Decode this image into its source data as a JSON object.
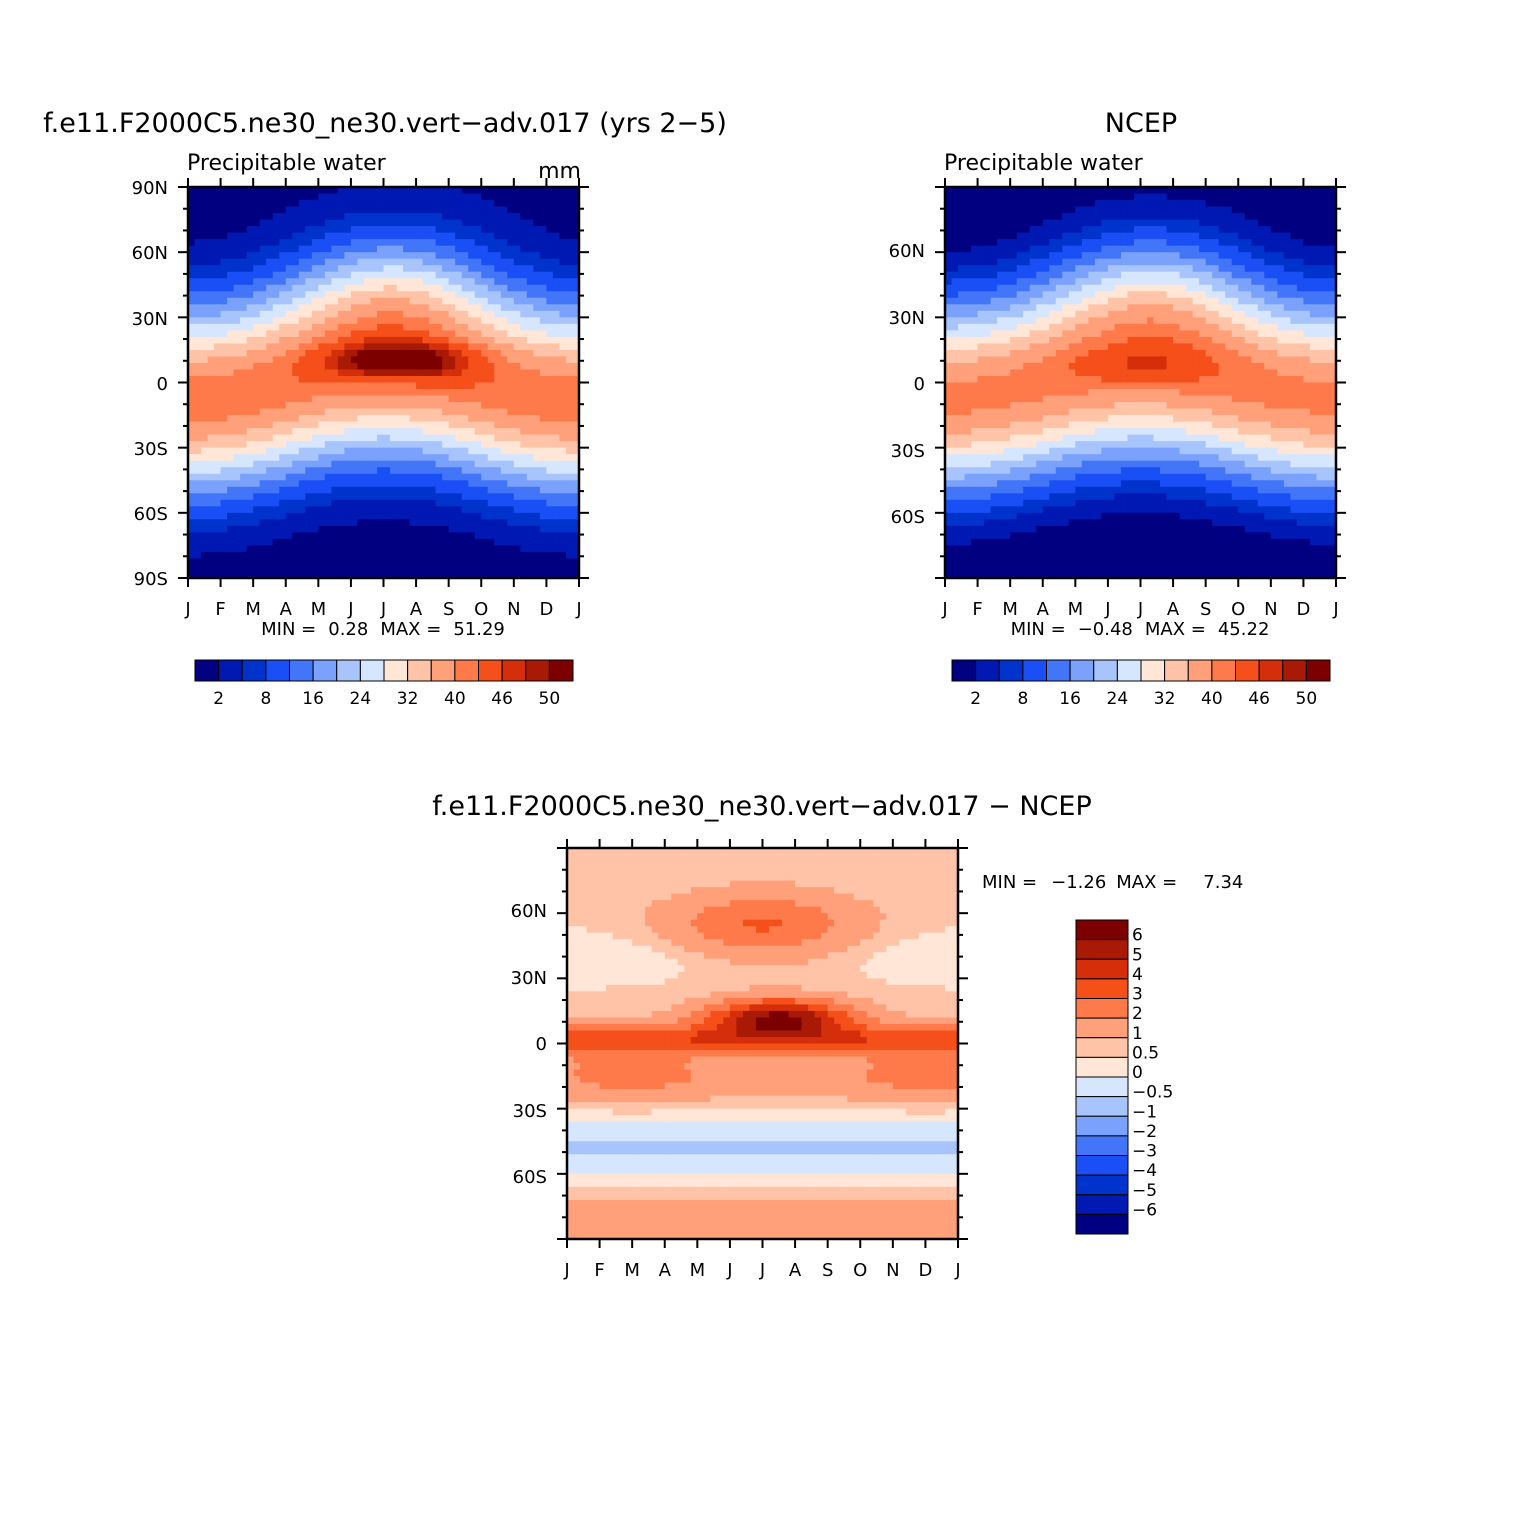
{
  "chart_data": [
    {
      "type": "heatmap",
      "title": "f.e11.F2000C5.ne30_ne30.vert−adv.017 (yrs 2−5)",
      "subtitle": "Precipitable water",
      "units": "mm",
      "x_ticks": [
        "J",
        "F",
        "M",
        "A",
        "M",
        "J",
        "J",
        "A",
        "S",
        "O",
        "N",
        "D",
        "J"
      ],
      "y_ticks": [
        "90N",
        "60N",
        "30N",
        "0",
        "30S",
        "60S",
        "90S"
      ],
      "ylim": [
        -90,
        90
      ],
      "field_model": {
        "equator_peak_mm": 42,
        "seasonal_shift_deg": 8,
        "polar_min_mm": 1,
        "hotspot_mm": 51,
        "hotspot_month": 6.5,
        "hotspot_lat": 10
      },
      "stats": {
        "min_label": "MIN =",
        "min": "0.28",
        "max_label": "MAX =",
        "max": "51.29"
      },
      "colorbar": {
        "levels": [
          "2",
          "8",
          "16",
          "24",
          "32",
          "40",
          "46",
          "50"
        ]
      }
    },
    {
      "type": "heatmap",
      "title": "NCEP",
      "subtitle": "Precipitable water",
      "x_ticks": [
        "J",
        "F",
        "M",
        "A",
        "M",
        "J",
        "J",
        "A",
        "S",
        "O",
        "N",
        "D",
        "J"
      ],
      "y_ticks": [
        "60N",
        "30N",
        "0",
        "30S",
        "60S"
      ],
      "ylim": [
        -90,
        90
      ],
      "field_model": {
        "equator_peak_mm": 41,
        "seasonal_shift_deg": 7,
        "polar_min_mm": 0,
        "hotspot_mm": 44,
        "hotspot_month": 6.0,
        "hotspot_lat": 8
      },
      "stats": {
        "min_label": "MIN =",
        "min": "−0.48",
        "max_label": "MAX =",
        "max": "45.22"
      },
      "colorbar": {
        "levels": [
          "2",
          "8",
          "16",
          "24",
          "32",
          "40",
          "46",
          "50"
        ]
      }
    },
    {
      "type": "heatmap",
      "title": "f.e11.F2000C5.ne30_ne30.vert−adv.017 − NCEP",
      "x_ticks": [
        "J",
        "F",
        "M",
        "A",
        "M",
        "J",
        "J",
        "A",
        "S",
        "O",
        "N",
        "D",
        "J"
      ],
      "y_ticks": [
        "60N",
        "30N",
        "0",
        "30S",
        "60S"
      ],
      "ylim": [
        -90,
        90
      ],
      "stats": {
        "min_label": "MIN =",
        "min": "−1.26",
        "max_label": "MAX =",
        "max": "7.34"
      },
      "colorbar": {
        "levels": [
          "6",
          "5",
          "4",
          "3",
          "2",
          "1",
          "0.5",
          "0",
          "−0.5",
          "−1",
          "−2",
          "−3",
          "−4",
          "−5",
          "−6"
        ]
      }
    }
  ],
  "colors": {
    "abs_scale": [
      "#000080",
      "#0019b3",
      "#0033cc",
      "#1a4ff5",
      "#4275f7",
      "#7aa1fb",
      "#a8c4fd",
      "#d6e6ff",
      "#ffe6d6",
      "#ffc4a8",
      "#ffa07a",
      "#ff7a4a",
      "#f54f1a",
      "#d42e0a",
      "#a81a05",
      "#7d0000"
    ],
    "diff_scale": [
      "#000080",
      "#0019b3",
      "#0033cc",
      "#1a4ff5",
      "#4275f7",
      "#7aa1fb",
      "#a8c4fd",
      "#d6e6ff",
      "#ffe6d6",
      "#ffc4a8",
      "#ffa07a",
      "#ff7a4a",
      "#f54f1a",
      "#d42e0a",
      "#a81a05",
      "#7d0000"
    ]
  }
}
